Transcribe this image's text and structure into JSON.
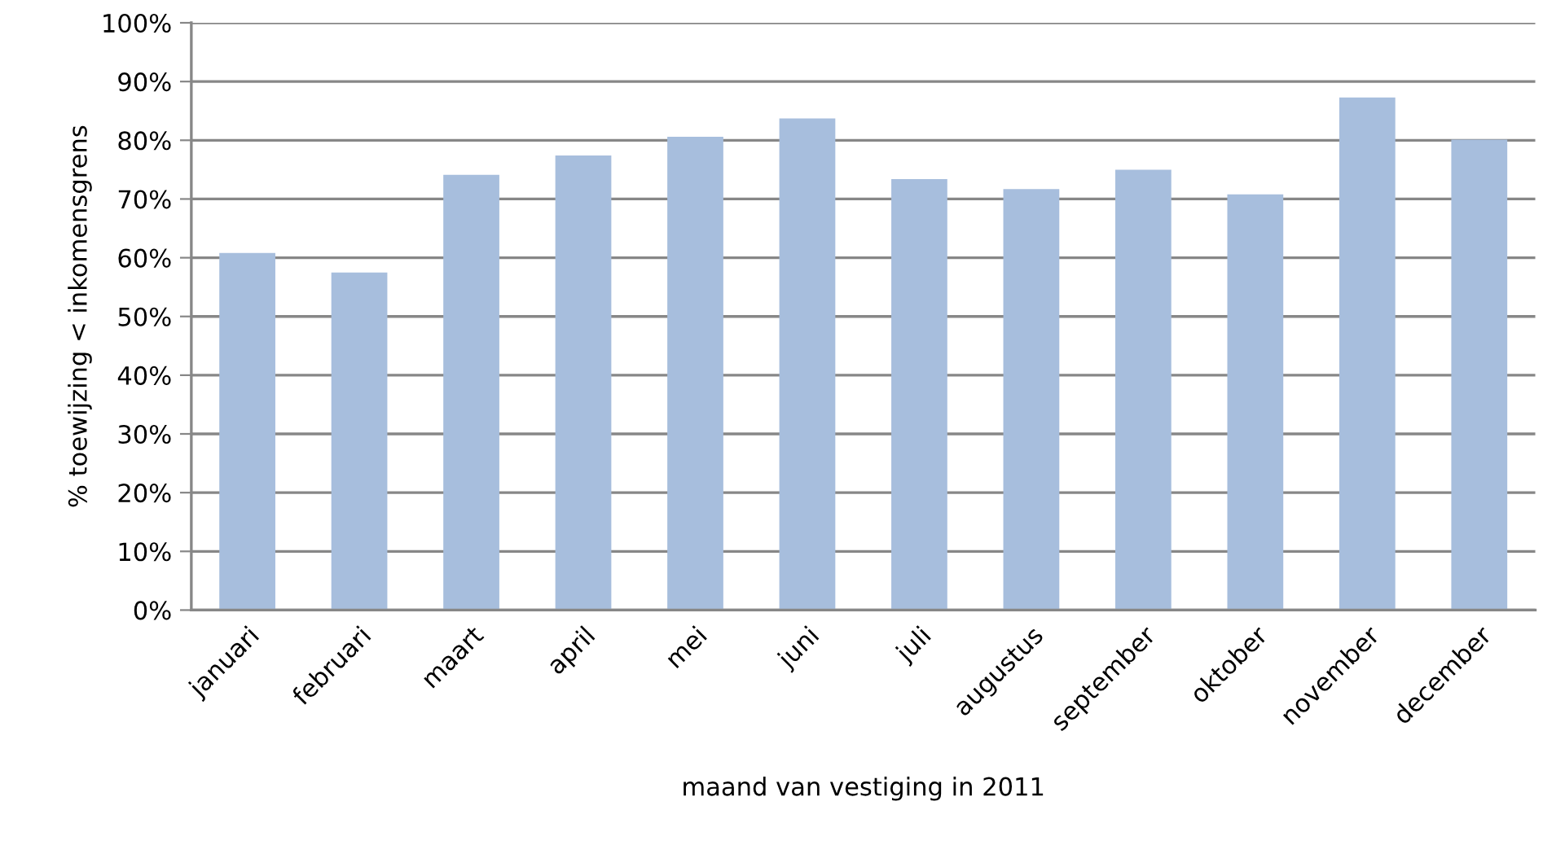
{
  "chart_data": {
    "type": "bar",
    "xlabel": "maand van vestiging in 2011",
    "ylabel": "% toewijzing < inkomensgrens",
    "categories": [
      "januari",
      "februari",
      "maart",
      "april",
      "mei",
      "juni",
      "juli",
      "augustus",
      "september",
      "oktober",
      "november",
      "december"
    ],
    "values": [
      60.8,
      57.5,
      74.1,
      77.4,
      80.6,
      83.7,
      73.4,
      71.7,
      75.0,
      70.8,
      87.3,
      80.1
    ],
    "color": "#a7bedd",
    "ylim": [
      0,
      100
    ],
    "yticks": [
      {
        "value": 0,
        "label": "0%"
      },
      {
        "value": 10,
        "label": "10%"
      },
      {
        "value": 20,
        "label": "20%"
      },
      {
        "value": 30,
        "label": "30%"
      },
      {
        "value": 40,
        "label": "40%"
      },
      {
        "value": 50,
        "label": "50%"
      },
      {
        "value": 60,
        "label": "60%"
      },
      {
        "value": 70,
        "label": "70%"
      },
      {
        "value": 80,
        "label": "80%"
      },
      {
        "value": 90,
        "label": "90%"
      },
      {
        "value": 100,
        "label": "100%"
      }
    ],
    "grid": "y"
  }
}
